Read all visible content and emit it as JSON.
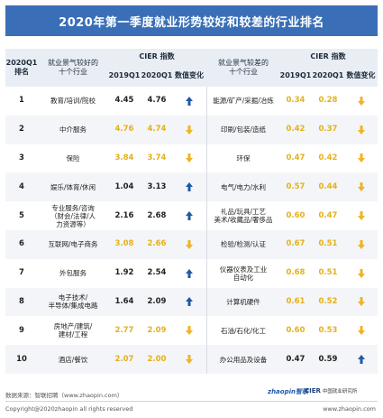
{
  "chart_data": {
    "type": "table",
    "title": "2020年第一季度就业形势较好和较差的行业排名",
    "headers": {
      "rank": "2020Q1\n排名",
      "good_industry": "就业景气较好的\n十个行业",
      "cier_index": "CIER 指数",
      "q2019": "2019Q1",
      "q2020": "2020Q1",
      "change": "数值变化",
      "bad_industry": "就业景气较差的\n十个行业"
    },
    "rows": [
      {
        "rank": "1",
        "good": "教育/培训/院校",
        "g2019": "4.45",
        "g2020": "4.76",
        "g_dir": "up",
        "g_hl": false,
        "bad": "能源/矿产/采掘/冶炼",
        "b2019": "0.34",
        "b2020": "0.28",
        "b_dir": "down",
        "b_hl": true
      },
      {
        "rank": "2",
        "good": "中介服务",
        "g2019": "4.76",
        "g2020": "4.74",
        "g_dir": "down",
        "g_hl": true,
        "bad": "印刷/包装/造纸",
        "b2019": "0.42",
        "b2020": "0.37",
        "b_dir": "down",
        "b_hl": true
      },
      {
        "rank": "3",
        "good": "保险",
        "g2019": "3.84",
        "g2020": "3.74",
        "g_dir": "down",
        "g_hl": true,
        "bad": "环保",
        "b2019": "0.47",
        "b2020": "0.42",
        "b_dir": "down",
        "b_hl": true
      },
      {
        "rank": "4",
        "good": "娱乐/体育/休闲",
        "g2019": "1.04",
        "g2020": "3.13",
        "g_dir": "up",
        "g_hl": false,
        "bad": "电气/电力/水利",
        "b2019": "0.57",
        "b2020": "0.44",
        "b_dir": "down",
        "b_hl": true
      },
      {
        "rank": "5",
        "good": "专业服务/咨询\n（财会/法律/人\n力资源等）",
        "g2019": "2.16",
        "g2020": "2.68",
        "g_dir": "up",
        "g_hl": false,
        "bad": "礼品/玩具/工艺\n美术/收藏品/奢侈品",
        "b2019": "0.60",
        "b2020": "0.47",
        "b_dir": "down",
        "b_hl": true
      },
      {
        "rank": "6",
        "good": "互联网/电子商务",
        "g2019": "3.08",
        "g2020": "2.66",
        "g_dir": "down",
        "g_hl": true,
        "bad": "检验/检测/认证",
        "b2019": "0.67",
        "b2020": "0.51",
        "b_dir": "down",
        "b_hl": true
      },
      {
        "rank": "7",
        "good": "外包服务",
        "g2019": "1.92",
        "g2020": "2.54",
        "g_dir": "up",
        "g_hl": false,
        "bad": "仪器仪表及工业\n自动化",
        "b2019": "0.68",
        "b2020": "0.51",
        "b_dir": "down",
        "b_hl": true
      },
      {
        "rank": "8",
        "good": "电子技术/\n半导体/集成电路",
        "g2019": "1.64",
        "g2020": "2.09",
        "g_dir": "up",
        "g_hl": false,
        "bad": "计算机硬件",
        "b2019": "0.61",
        "b2020": "0.52",
        "b_dir": "down",
        "b_hl": true
      },
      {
        "rank": "9",
        "good": "房地产/建筑/\n建材/工程",
        "g2019": "2.77",
        "g2020": "2.09",
        "g_dir": "down",
        "g_hl": true,
        "bad": "石油/石化/化工",
        "b2019": "0.60",
        "b2020": "0.53",
        "b_dir": "down",
        "b_hl": true
      },
      {
        "rank": "10",
        "good": "酒店/餐饮",
        "g2019": "2.07",
        "g2020": "2.00",
        "g_dir": "down",
        "g_hl": true,
        "bad": "办公用品及设备",
        "b2019": "0.47",
        "b2020": "0.59",
        "b_dir": "up",
        "b_hl": false
      }
    ]
  },
  "colors": {
    "up": "#1f5aa6",
    "down": "#f0b323",
    "highlight": "#e3b11c",
    "title_bg": "#3a6fb7"
  },
  "footer": {
    "source": "数据来源：智联招聘（www.zhaopin.com）",
    "copyright": "Copyright@2020zhaopin all rights reserved",
    "site": "www.zhaopin.com",
    "logo_left": "zhaopin智联",
    "logo_right": "CIER",
    "logo_right_sub": "中国就业研究所"
  }
}
